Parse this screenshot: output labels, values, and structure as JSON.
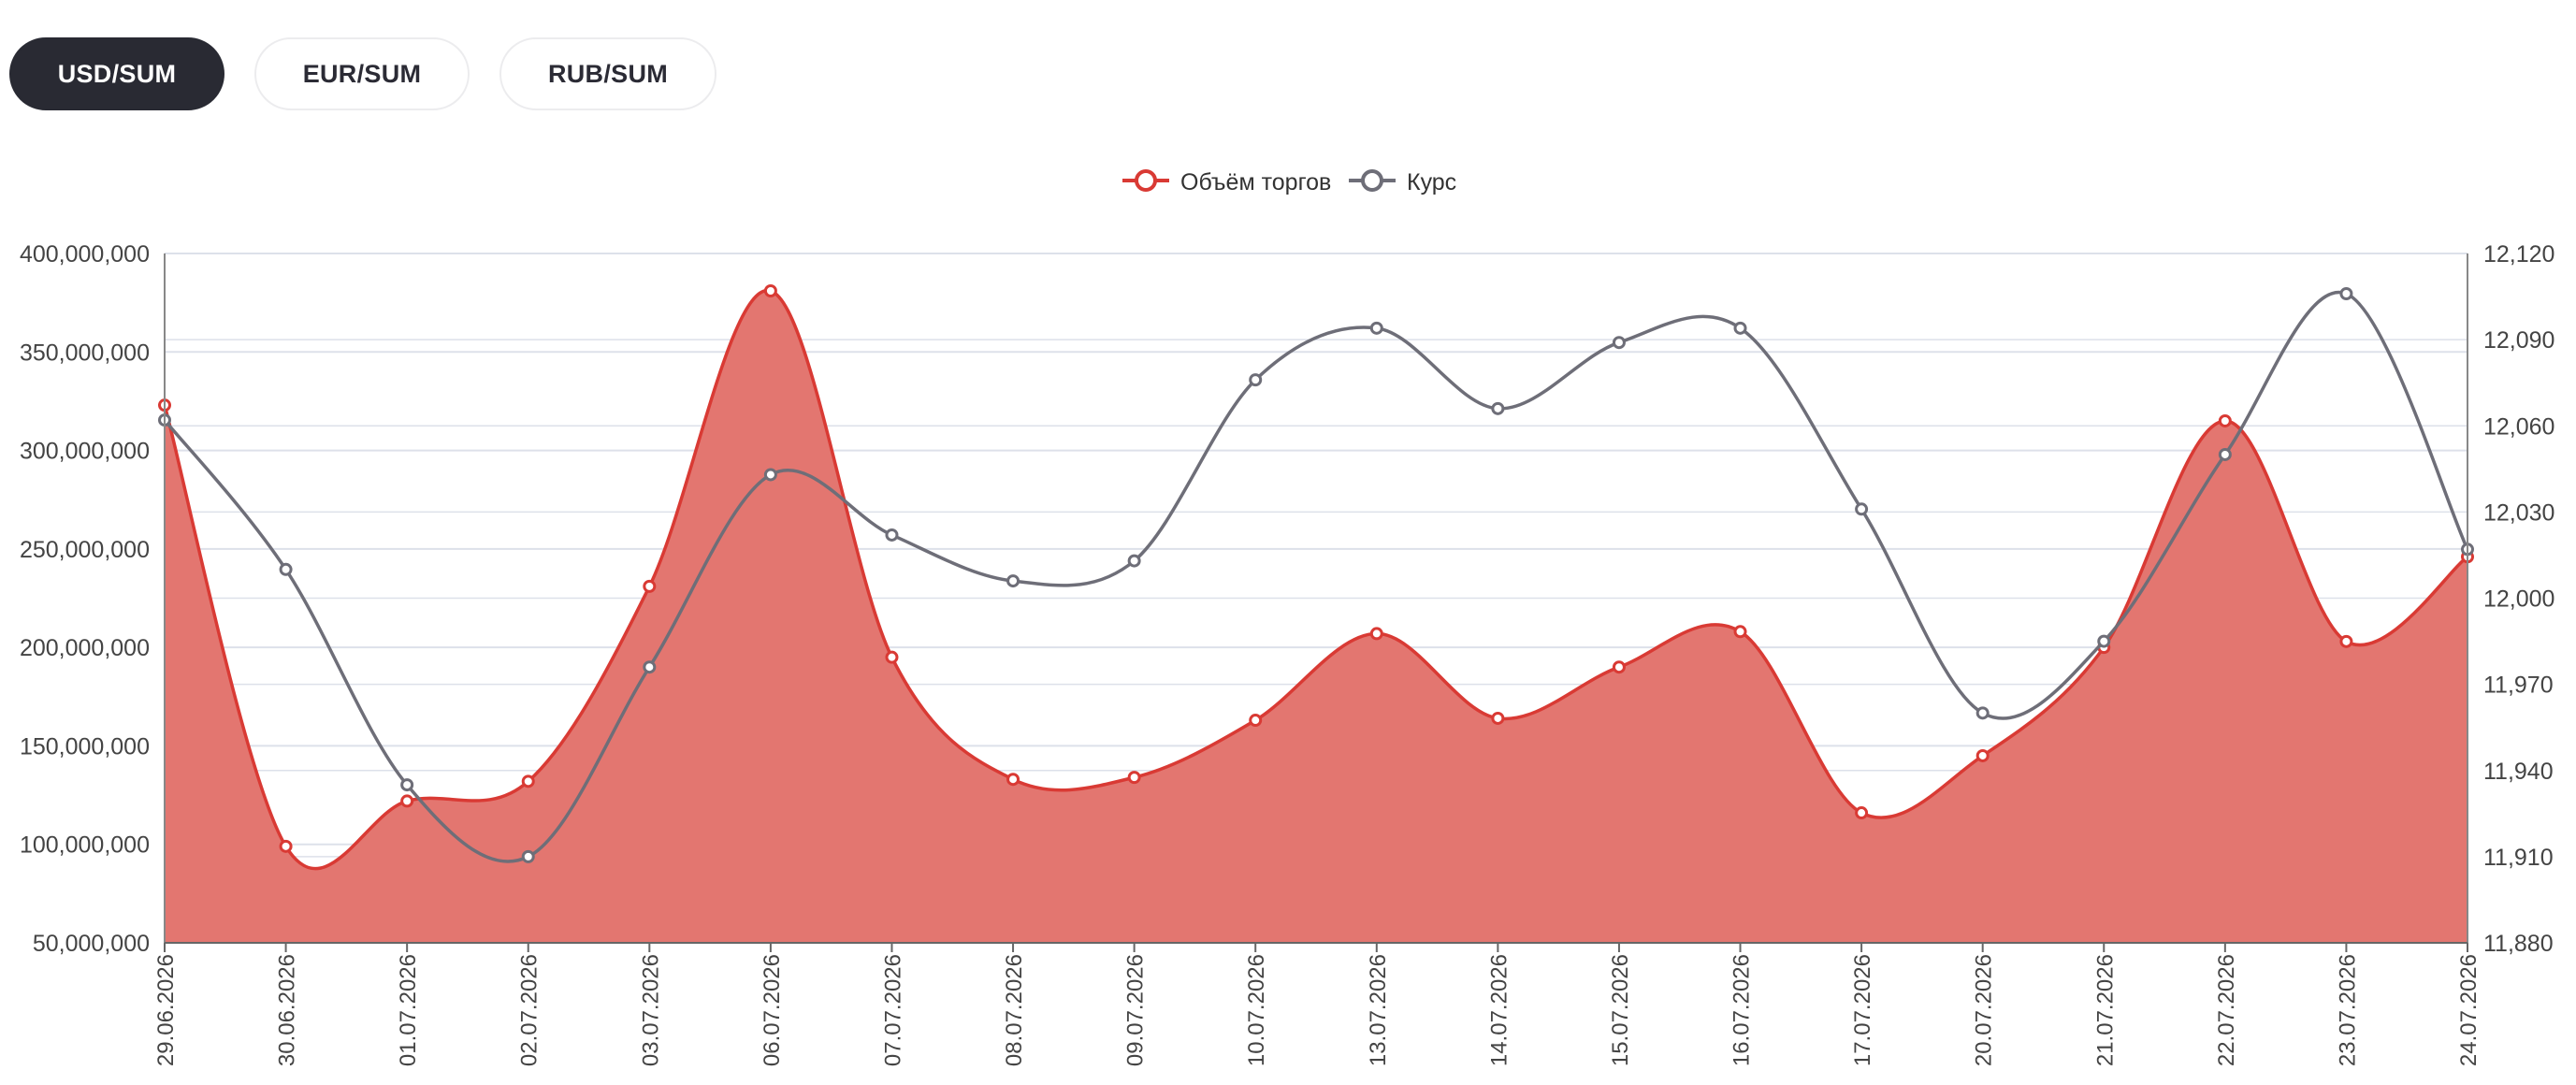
{
  "tabs": [
    {
      "label": "USD/SUM",
      "active": true
    },
    {
      "label": "EUR/SUM",
      "active": false
    },
    {
      "label": "RUB/SUM",
      "active": false
    }
  ],
  "colors": {
    "volume": "#d93a34",
    "volume_fill": "#e37670",
    "rate": "#6e6e78",
    "grid": "#dde1ea",
    "tab_active_bg": "#292a33"
  },
  "chart_data": {
    "type": "area",
    "categories": [
      "29.06.2026",
      "30.06.2026",
      "01.07.2026",
      "02.07.2026",
      "03.07.2026",
      "06.07.2026",
      "07.07.2026",
      "08.07.2026",
      "09.07.2026",
      "10.07.2026",
      "13.07.2026",
      "14.07.2026",
      "15.07.2026",
      "16.07.2026",
      "17.07.2026",
      "20.07.2026",
      "21.07.2026",
      "22.07.2026",
      "23.07.2026",
      "24.07.2026"
    ],
    "series": [
      {
        "name": "Объём торгов",
        "kind": "area",
        "axis": "left",
        "values": [
          323000000,
          99000000,
          122000000,
          132000000,
          231000000,
          381000000,
          195000000,
          133000000,
          134000000,
          163000000,
          207000000,
          164000000,
          190000000,
          208000000,
          116000000,
          145000000,
          200000000,
          315000000,
          203000000,
          246000000
        ]
      },
      {
        "name": "Курс",
        "kind": "line",
        "axis": "right",
        "values": [
          12062,
          12010,
          11935,
          11910,
          11976,
          12043,
          12022,
          12006,
          12013,
          12076,
          12094,
          12066,
          12089,
          12094,
          12031,
          11960,
          11985,
          12050,
          12106,
          12017
        ]
      }
    ],
    "y_left": {
      "min": 50000000,
      "max": 400000000,
      "ticks": [
        "400,000,000",
        "350,000,000",
        "300,000,000",
        "250,000,000",
        "200,000,000",
        "150,000,000",
        "100,000,000",
        "50,000,000"
      ]
    },
    "y_right": {
      "min": 11880,
      "max": 12120,
      "ticks": [
        "12,120",
        "12,090",
        "12,060",
        "12,030",
        "12,000",
        "11,970",
        "11,940",
        "11,910",
        "11,880"
      ]
    },
    "legend_position": "top-center",
    "grid": true
  }
}
